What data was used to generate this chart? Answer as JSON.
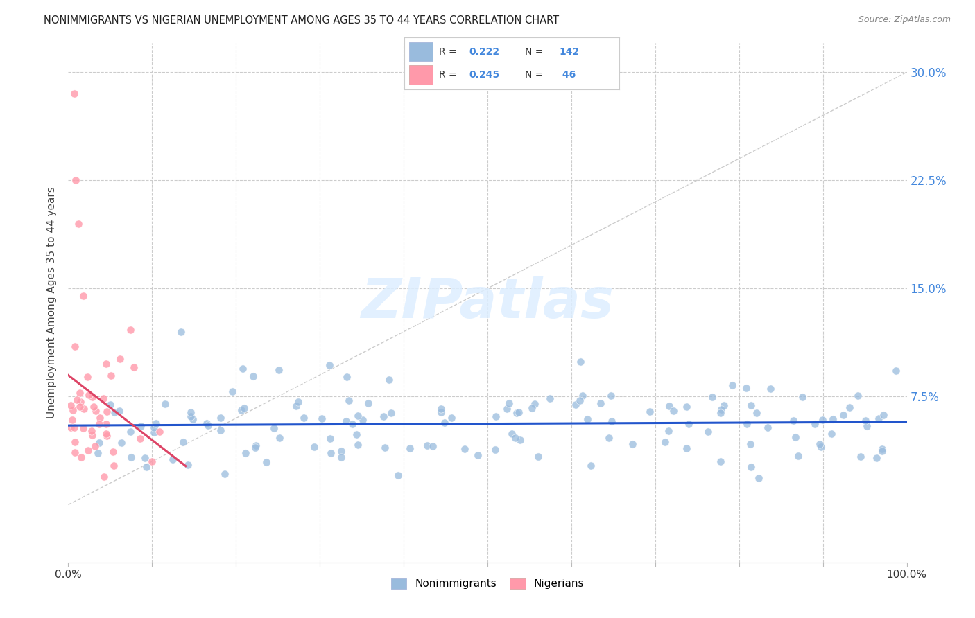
{
  "title": "NONIMMIGRANTS VS NIGERIAN UNEMPLOYMENT AMONG AGES 35 TO 44 YEARS CORRELATION CHART",
  "source": "Source: ZipAtlas.com",
  "ylabel_label": "Unemployment Among Ages 35 to 44 years",
  "blue_color": "#99BBDD",
  "pink_color": "#FF99AA",
  "trendline_blue": "#2255CC",
  "trendline_pink": "#DD4466",
  "trendline_diagonal_color": "#CCCCCC",
  "watermark_color": "#DDEEFF",
  "ytick_color": "#4488DD",
  "xlim": [
    0.0,
    1.0
  ],
  "ylim": [
    -0.04,
    0.32
  ],
  "ytick_vals": [
    0.075,
    0.15,
    0.225,
    0.3
  ],
  "ytick_labels": [
    "7.5%",
    "15.0%",
    "22.5%",
    "30.0%"
  ],
  "xtick_vals": [
    0.0,
    0.1,
    0.2,
    0.3,
    0.4,
    0.5,
    0.6,
    0.7,
    0.8,
    0.9,
    1.0
  ],
  "xtick_labels": [
    "0.0%",
    "",
    "",
    "",
    "",
    "",
    "",
    "",
    "",
    "",
    "100.0%"
  ],
  "legend_blue_r": "0.222",
  "legend_blue_n": "142",
  "legend_pink_r": "0.245",
  "legend_pink_n": " 46",
  "bottom_legend": [
    "Nonimmigrants",
    "Nigerians"
  ],
  "seed_blue": 42,
  "seed_pink": 99
}
